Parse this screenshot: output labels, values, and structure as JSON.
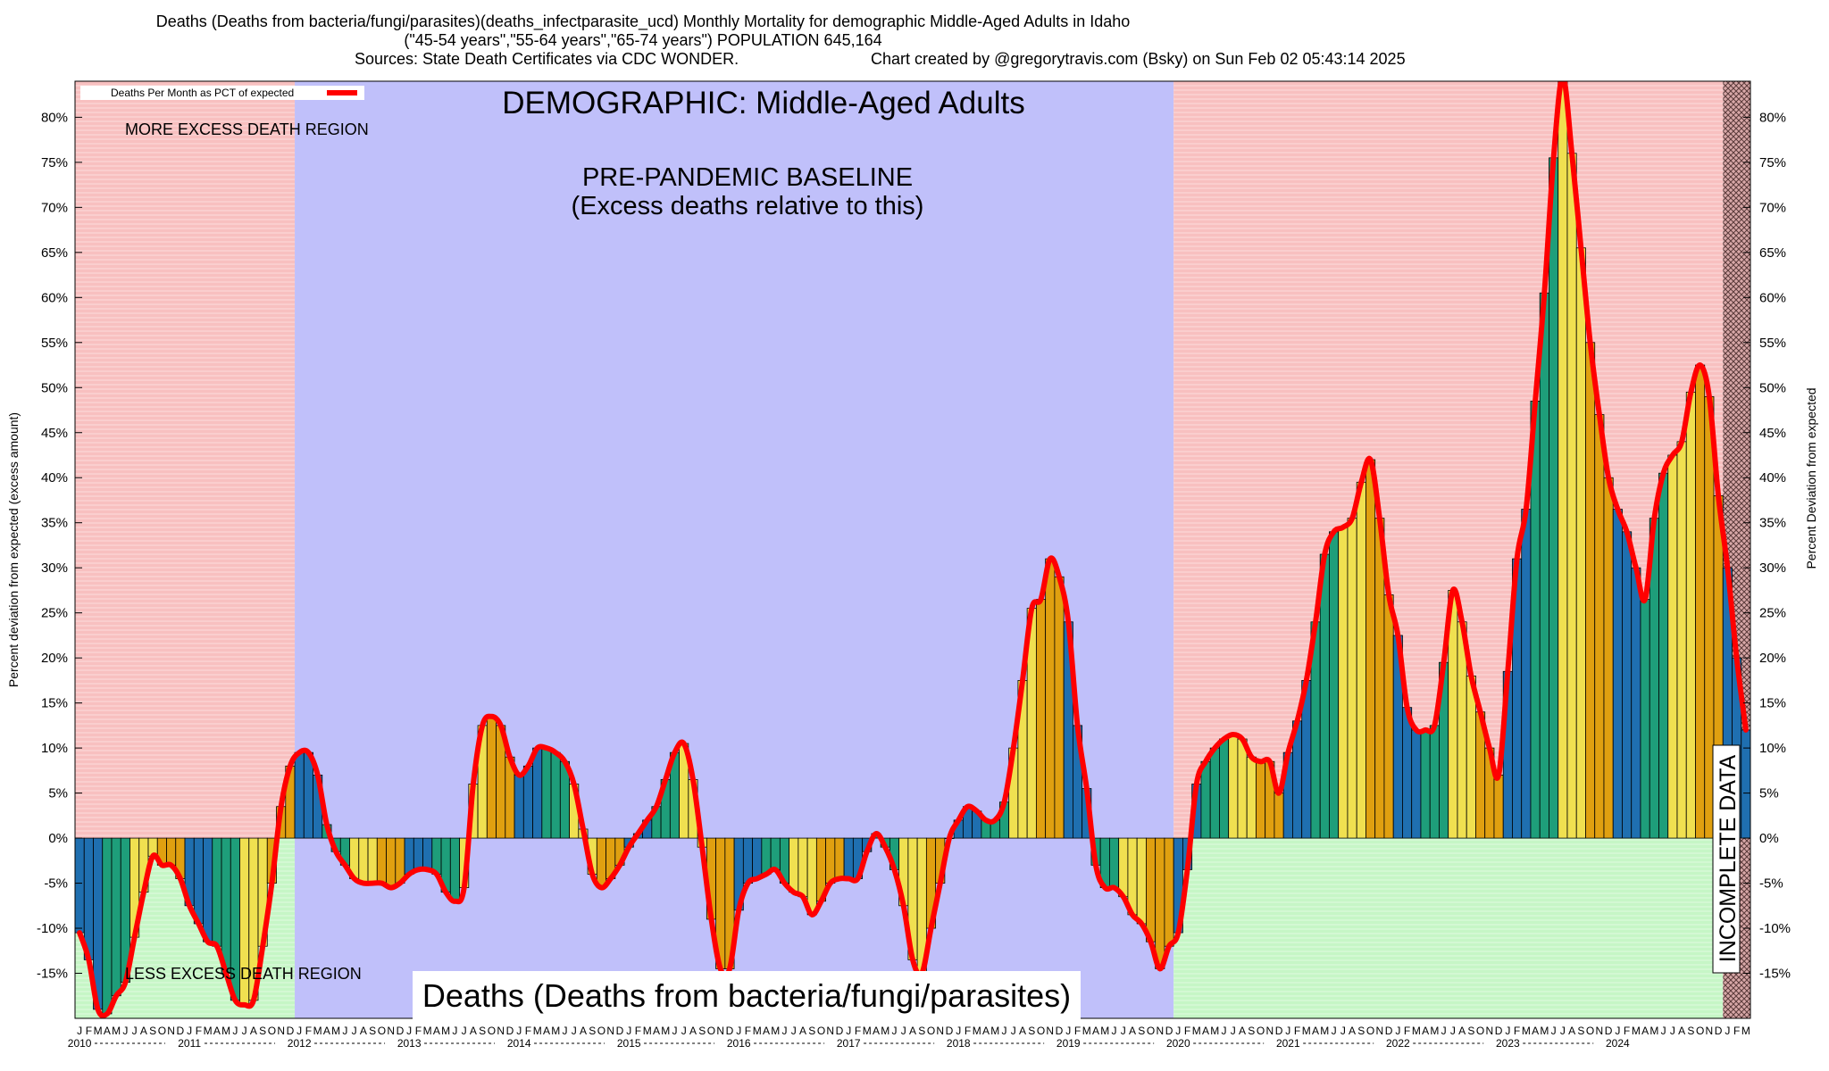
{
  "chart_data": {
    "type": "bar",
    "title": "Deaths (Deaths from bacteria/fungi/parasites)(deaths_infectparasite_ucd) Monthly Mortality for demographic Middle-Aged Adults in Idaho",
    "subtitle": "(\"45-54 years\",\"55-64 years\",\"65-74 years\") POPULATION 645,164",
    "sources": "Sources: State Death Certificates via CDC WONDER.",
    "credit": "Chart created by @gregorytravis.com (Bsky) on Sun Feb 02 05:43:14 2025",
    "ylabel_left": "Percent deviation from expected (excess amount)",
    "ylabel_right": "Percent Deviation from expected",
    "legend": "Deaths Per Month as PCT of expected",
    "ylim": [
      -20,
      84
    ],
    "yticks": [
      -15,
      -10,
      -5,
      0,
      5,
      10,
      15,
      20,
      25,
      30,
      35,
      40,
      45,
      50,
      55,
      60,
      65,
      70,
      75,
      80
    ],
    "ytick_labels": [
      "-15%",
      "-10%",
      "-5%",
      "0%",
      "5%",
      "10%",
      "15%",
      "20%",
      "25%",
      "30%",
      "35%",
      "40%",
      "45%",
      "50%",
      "55%",
      "60%",
      "65%",
      "70%",
      "75%",
      "80%"
    ],
    "month_letters": [
      "J",
      "F",
      "M",
      "A",
      "M",
      "J",
      "J",
      "A",
      "S",
      "O",
      "N",
      "D"
    ],
    "years": [
      "2010",
      "2011",
      "2012",
      "2013",
      "2014",
      "2015",
      "2016",
      "2017",
      "2018",
      "2019",
      "2020",
      "2021",
      "2022",
      "2023",
      "2024"
    ],
    "regions": {
      "more_excess": "MORE EXCESS DEATH REGION",
      "less_excess": "LESS EXCESS DEATH REGION",
      "baseline_title": "PRE-PANDEMIC BASELINE",
      "baseline_sub": "(Excess deaths relative to this)",
      "demographic": "DEMOGRAPHIC: Middle-Aged Adults",
      "incomplete": "INCOMPLETE DATA",
      "bottom_label": "Deaths (Deaths from bacteria/fungi/parasites)"
    },
    "colors": {
      "more_bg": "#f8c0c0",
      "less_bg": "#c6f6c6",
      "baseline_bg": "#c0c0fa",
      "line": "#ff0000",
      "bar_palette": [
        "#1f6fb0",
        "#1e9e7a",
        "#f0e050",
        "#e0a010"
      ]
    },
    "values": [
      -10.5,
      -13.5,
      -19,
      -19.5,
      -17.5,
      -16,
      -11,
      -6,
      -2,
      -3,
      -3,
      -4.5,
      -7.5,
      -9.5,
      -11.5,
      -12,
      -15,
      -18,
      -18.5,
      -18,
      -12,
      -5,
      3.5,
      8,
      9.5,
      9.5,
      7,
      1.5,
      -1.5,
      -3,
      -4.5,
      -5,
      -5,
      -5,
      -5.5,
      -5,
      -4,
      -3.5,
      -3.5,
      -4,
      -6,
      -7,
      -5.5,
      6,
      12.5,
      13.5,
      12.5,
      9,
      7,
      8,
      10,
      10,
      9.5,
      8.5,
      6,
      1,
      -4,
      -5.5,
      -4.5,
      -3,
      -1,
      0.5,
      2,
      3.5,
      6.5,
      9.5,
      10.5,
      6.5,
      -1,
      -9,
      -14.5,
      -14.5,
      -8,
      -5,
      -4.5,
      -4,
      -3.5,
      -5,
      -6,
      -6.5,
      -8.5,
      -7,
      -5,
      -4.5,
      -4.5,
      -4.5,
      -1.5,
      0.5,
      -1,
      -3.5,
      -7.5,
      -13.5,
      -15,
      -10,
      -5,
      0,
      2,
      3.5,
      3,
      2,
      2,
      4,
      10,
      17.5,
      25.5,
      26.5,
      31,
      29,
      24,
      12.5,
      5.5,
      -3,
      -5.5,
      -5.5,
      -6.5,
      -8.5,
      -9.5,
      -11.5,
      -14.5,
      -12,
      -10.5,
      -3.5,
      6,
      8.5,
      10,
      11,
      11.5,
      11,
      9,
      8.5,
      8.5,
      5,
      9.5,
      13,
      17.5,
      24,
      31.5,
      34,
      34.5,
      35.5,
      39.5,
      42,
      35.5,
      27,
      22.5,
      14.5,
      12,
      12,
      12.5,
      19.5,
      27.5,
      24,
      18,
      14,
      10,
      7,
      18.5,
      31,
      36.5,
      48.5,
      60.5,
      75.5,
      84.5,
      76,
      65.5,
      55,
      47,
      40,
      36.5,
      34,
      30,
      26.5,
      35.5,
      40.5,
      42.5,
      44,
      49.5,
      52.5,
      49,
      38
    ],
    "incomplete_values": [
      30,
      20,
      12
    ]
  }
}
